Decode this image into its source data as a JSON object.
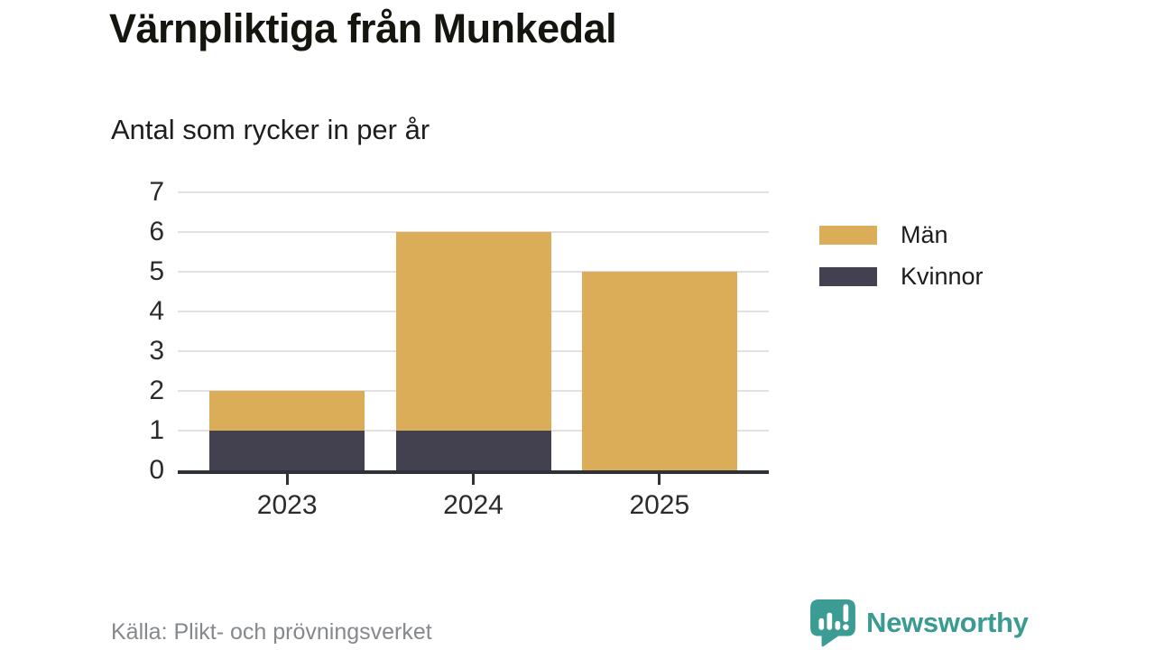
{
  "chart_data": {
    "type": "bar",
    "stacked": true,
    "title": "Värnpliktiga från Munkedal",
    "subtitle": "Antal som rycker in per år",
    "categories": [
      "2023",
      "2024",
      "2025"
    ],
    "series": [
      {
        "name": "Kvinnor",
        "color": "#434050",
        "values": [
          1,
          1,
          0
        ]
      },
      {
        "name": "Män",
        "color": "#dbad58",
        "values": [
          1,
          5,
          5
        ]
      }
    ],
    "stack_totals": [
      2,
      6,
      5
    ],
    "xlabel": "",
    "ylabel": "",
    "ylim": [
      0,
      7
    ],
    "yticks": [
      0,
      1,
      2,
      3,
      4,
      5,
      6,
      7
    ],
    "grid": true,
    "gridline_color": "#e1e1e4",
    "axis_color": "#2e3135",
    "legend_position": "right",
    "legend_order": [
      "Män",
      "Kvinnor"
    ]
  },
  "footer": {
    "source": "Källa: Plikt- och prövningsverket",
    "brand": "Newsworthy",
    "brand_color": "#3a9b92",
    "brand_icon": "newsworthy-speech-bubble-bar-chart-icon"
  }
}
